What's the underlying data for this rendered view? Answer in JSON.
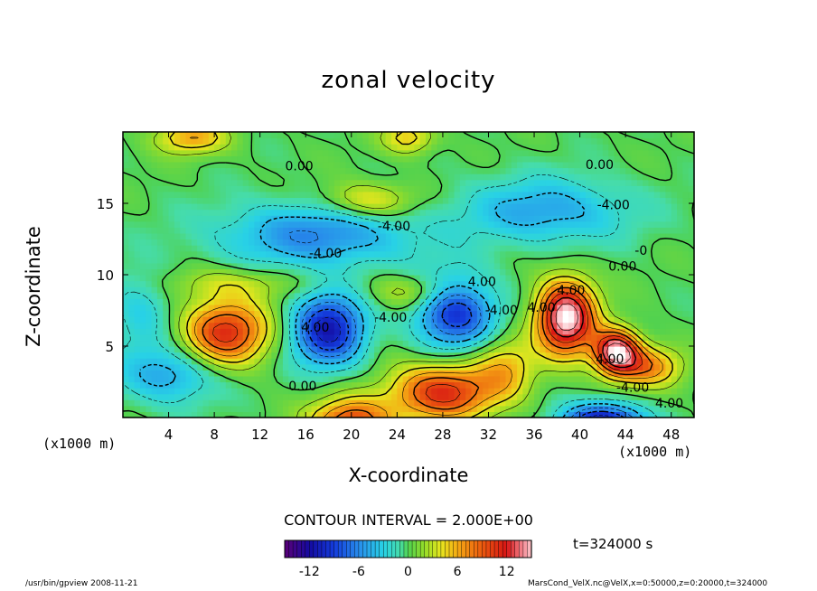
{
  "chart_data": {
    "type": "heatmap",
    "title": "zonal velocity",
    "xlabel": "X-coordinate",
    "ylabel": "Z-coordinate",
    "x_unit_label": "(x1000 m)",
    "xlim": [
      0,
      50
    ],
    "ylim": [
      0,
      20
    ],
    "x_ticks": [
      "4",
      "8",
      "12",
      "16",
      "20",
      "24",
      "28",
      "32",
      "36",
      "40",
      "44",
      "48"
    ],
    "y_ticks": [
      "5",
      "10",
      "15"
    ],
    "contour_interval_text": "CONTOUR INTERVAL = 2.000E+00",
    "contour_labels": [
      {
        "text": "0.00",
        "x": 14.2,
        "y": 17.3
      },
      {
        "text": "0.00",
        "x": 40.5,
        "y": 17.4
      },
      {
        "text": "-4.00",
        "x": 22.3,
        "y": 13.1
      },
      {
        "text": "-4.00",
        "x": 41.5,
        "y": 14.6
      },
      {
        "text": "-4.00",
        "x": 16.3,
        "y": 11.2
      },
      {
        "text": "0.00",
        "x": 42.5,
        "y": 10.3
      },
      {
        "text": "-0",
        "x": 44.8,
        "y": 11.4
      },
      {
        "text": "4.00",
        "x": 30.2,
        "y": 9.2
      },
      {
        "text": "-4.00",
        "x": 31.7,
        "y": 7.2
      },
      {
        "text": "-4.00",
        "x": 22.0,
        "y": 6.7
      },
      {
        "text": "4.00",
        "x": 35.4,
        "y": 7.4
      },
      {
        "text": "4.00",
        "x": 15.6,
        "y": 6.0
      },
      {
        "text": "4.00",
        "x": 38.0,
        "y": 8.6
      },
      {
        "text": "4.00",
        "x": 41.4,
        "y": 3.8
      },
      {
        "text": "-4.00",
        "x": 43.2,
        "y": 1.8
      },
      {
        "text": "0.00",
        "x": 14.5,
        "y": 1.9
      },
      {
        "text": "4.00",
        "x": 46.6,
        "y": 0.7
      }
    ],
    "features": [
      {
        "x": 9.0,
        "y": 6.0,
        "value": 11,
        "sx": 2.6,
        "sy": 1.6
      },
      {
        "x": 18.0,
        "y": 6.2,
        "value": -11,
        "sx": 2.2,
        "sy": 1.8
      },
      {
        "x": 29.0,
        "y": 7.5,
        "value": -10,
        "sx": 2.4,
        "sy": 1.8
      },
      {
        "x": 38.8,
        "y": 7.0,
        "value": 16,
        "sx": 1.8,
        "sy": 1.8
      },
      {
        "x": 43.2,
        "y": 4.6,
        "value": 15,
        "sx": 1.4,
        "sy": 1.1
      },
      {
        "x": 28.0,
        "y": 1.8,
        "value": 11,
        "sx": 3.2,
        "sy": 1.4
      },
      {
        "x": 20.0,
        "y": -0.3,
        "value": 10,
        "sx": 2.5,
        "sy": 1.2
      },
      {
        "x": 42.0,
        "y": -0.5,
        "value": -13,
        "sx": 2.4,
        "sy": 1.0
      },
      {
        "x": 17.0,
        "y": 12.8,
        "value": -6,
        "sx": 6.0,
        "sy": 1.6
      },
      {
        "x": 37.0,
        "y": 14.5,
        "value": -5,
        "sx": 5.0,
        "sy": 1.6
      },
      {
        "x": 21.5,
        "y": 15.2,
        "value": 5,
        "sx": 2.8,
        "sy": 0.9
      },
      {
        "x": 6.0,
        "y": 19.6,
        "value": 6,
        "sx": 2.2,
        "sy": 0.8
      },
      {
        "x": 25.0,
        "y": 19.6,
        "value": 5,
        "sx": 1.6,
        "sy": 0.8
      },
      {
        "x": 4.0,
        "y": 3.0,
        "value": -5,
        "sx": 3.0,
        "sy": 1.4
      },
      {
        "x": 46.0,
        "y": 3.6,
        "value": 7,
        "sx": 2.0,
        "sy": 1.0
      },
      {
        "x": 10.0,
        "y": 9.4,
        "value": 3,
        "sx": 4.0,
        "sy": 0.8
      },
      {
        "x": 26.0,
        "y": 8.8,
        "value": 4,
        "sx": 3.0,
        "sy": 0.9
      },
      {
        "x": 33.5,
        "y": 3.5,
        "value": 5,
        "sx": 1.8,
        "sy": 1.5
      },
      {
        "x": 1.5,
        "y": 7.5,
        "value": -3,
        "sx": 2.0,
        "sy": 2.0
      }
    ],
    "colorbar": {
      "range": [
        -15,
        15
      ],
      "ticks": [
        "-12",
        "-6",
        "0",
        "6",
        "12"
      ]
    }
  },
  "labels": {
    "t_label": "t=324000 s",
    "footer_left": "/usr/bin/gpview  2008-11-21",
    "footer_right": "MarsCond_VelX.nc@VelX,x=0:50000,z=0:20000,t=324000"
  }
}
